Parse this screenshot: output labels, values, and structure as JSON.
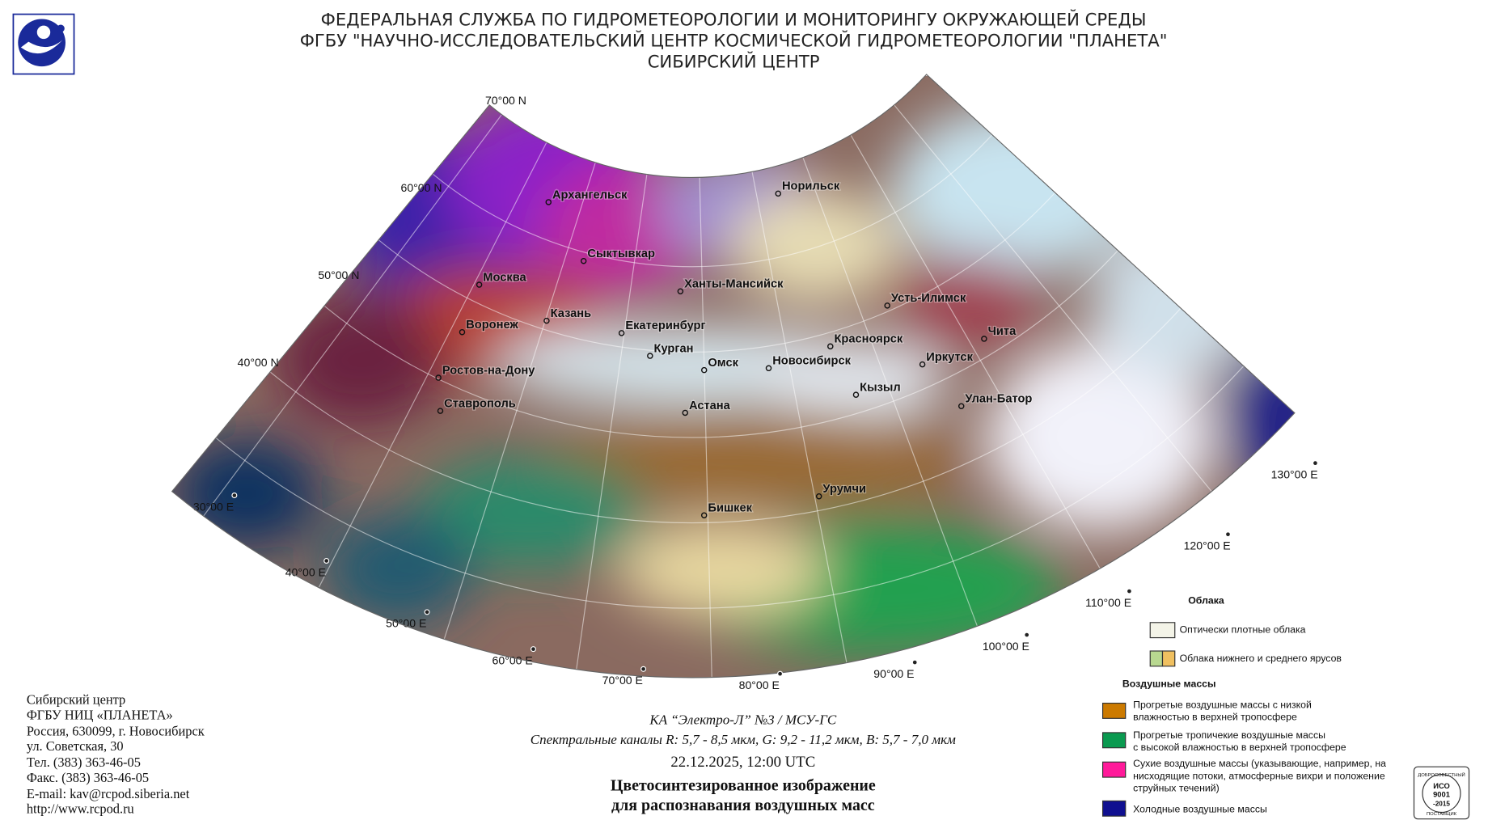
{
  "header": {
    "lines": [
      "ФЕДЕРАЛЬНАЯ СЛУЖБА ПО ГИДРОМЕТЕОРОЛОГИИ И МОНИТОРИНГУ ОКРУЖАЮЩЕЙ СРЕДЫ",
      "ФГБУ \"НАУЧНО-ИССЛЕДОВАТЕЛЬСКИЙ ЦЕНТР КОСМИЧЕСКОЙ ГИДРОМЕТЕОРОЛОГИИ \"ПЛАНЕТА\"",
      "СИБИРСКИЙ ЦЕНТР"
    ]
  },
  "map": {
    "latitude_labels": [
      "70°00 N",
      "60°00 N",
      "50°00 N",
      "40°00 N"
    ],
    "longitude_labels": [
      "30°00 E",
      "40°00 E",
      "50°00 E",
      "60°00 E",
      "70°00 E",
      "80°00 E",
      "90°00 E",
      "100°00 E",
      "110°00 E",
      "120°00 E",
      "130°00 E"
    ],
    "cities": [
      "Архангельск",
      "Норильск",
      "Сыктывкар",
      "Москва",
      "Ханты-Мансийск",
      "Усть-Илимск",
      "Казань",
      "Воронеж",
      "Екатеринбург",
      "Красноярск",
      "Чита",
      "Курган",
      "Омск",
      "Новосибирск",
      "Иркутск",
      "Ростов-на-Дону",
      "Кызыл",
      "Ставрополь",
      "Улан-Батор",
      "Астана",
      "Урумчи",
      "Бишкек"
    ]
  },
  "footer": {
    "contact": [
      "Сибирский центр",
      "ФГБУ НИЦ «ПЛАНЕТА»",
      "Россия, 630099, г. Новосибирск",
      "ул. Советская, 30",
      "Тел. (383) 363-46-05",
      "Факс. (383) 363-46-05",
      "E-mail: kav@rcpod.siberia.net",
      "http://www.rcpod.ru"
    ],
    "satellite": "КА “Электро-Л” №3 / МСУ-ГС",
    "channels": "Спектральные каналы R: 5,7 - 8,5 мкм, G: 9,2 - 11,2 мкм, B: 5,7 - 7,0 мкм",
    "datetime": "22.12.2025, 12:00 UTC",
    "title_lines": [
      "Цветосинтезированное изображение",
      "для распознавания воздушных масс"
    ]
  },
  "legend": {
    "clouds_title": "Облака",
    "clouds": [
      "Оптически плотные облака",
      "Облака нижнего и среднего ярусов"
    ],
    "air_masses_title": "Воздушные массы",
    "air_masses": [
      [
        "Прогретые воздушные массы с низкой",
        "влажностью в верхней тропосфере"
      ],
      [
        "Прогретые тропичекие воздушные массы",
        "с высокой влажностью в верхней тропосфере"
      ],
      [
        "Сухие воздушные массы (указывающие, например, на",
        "нисходящие потоки, атмосферные вихри и положение",
        "струйных течений)"
      ],
      [
        "Холодные воздушные массы"
      ]
    ]
  },
  "certificate": [
    "ДОБРОСОВЕСТНЫЙ",
    "ИСО",
    "9001",
    "-2015",
    "ПОСТАВЩИК"
  ]
}
